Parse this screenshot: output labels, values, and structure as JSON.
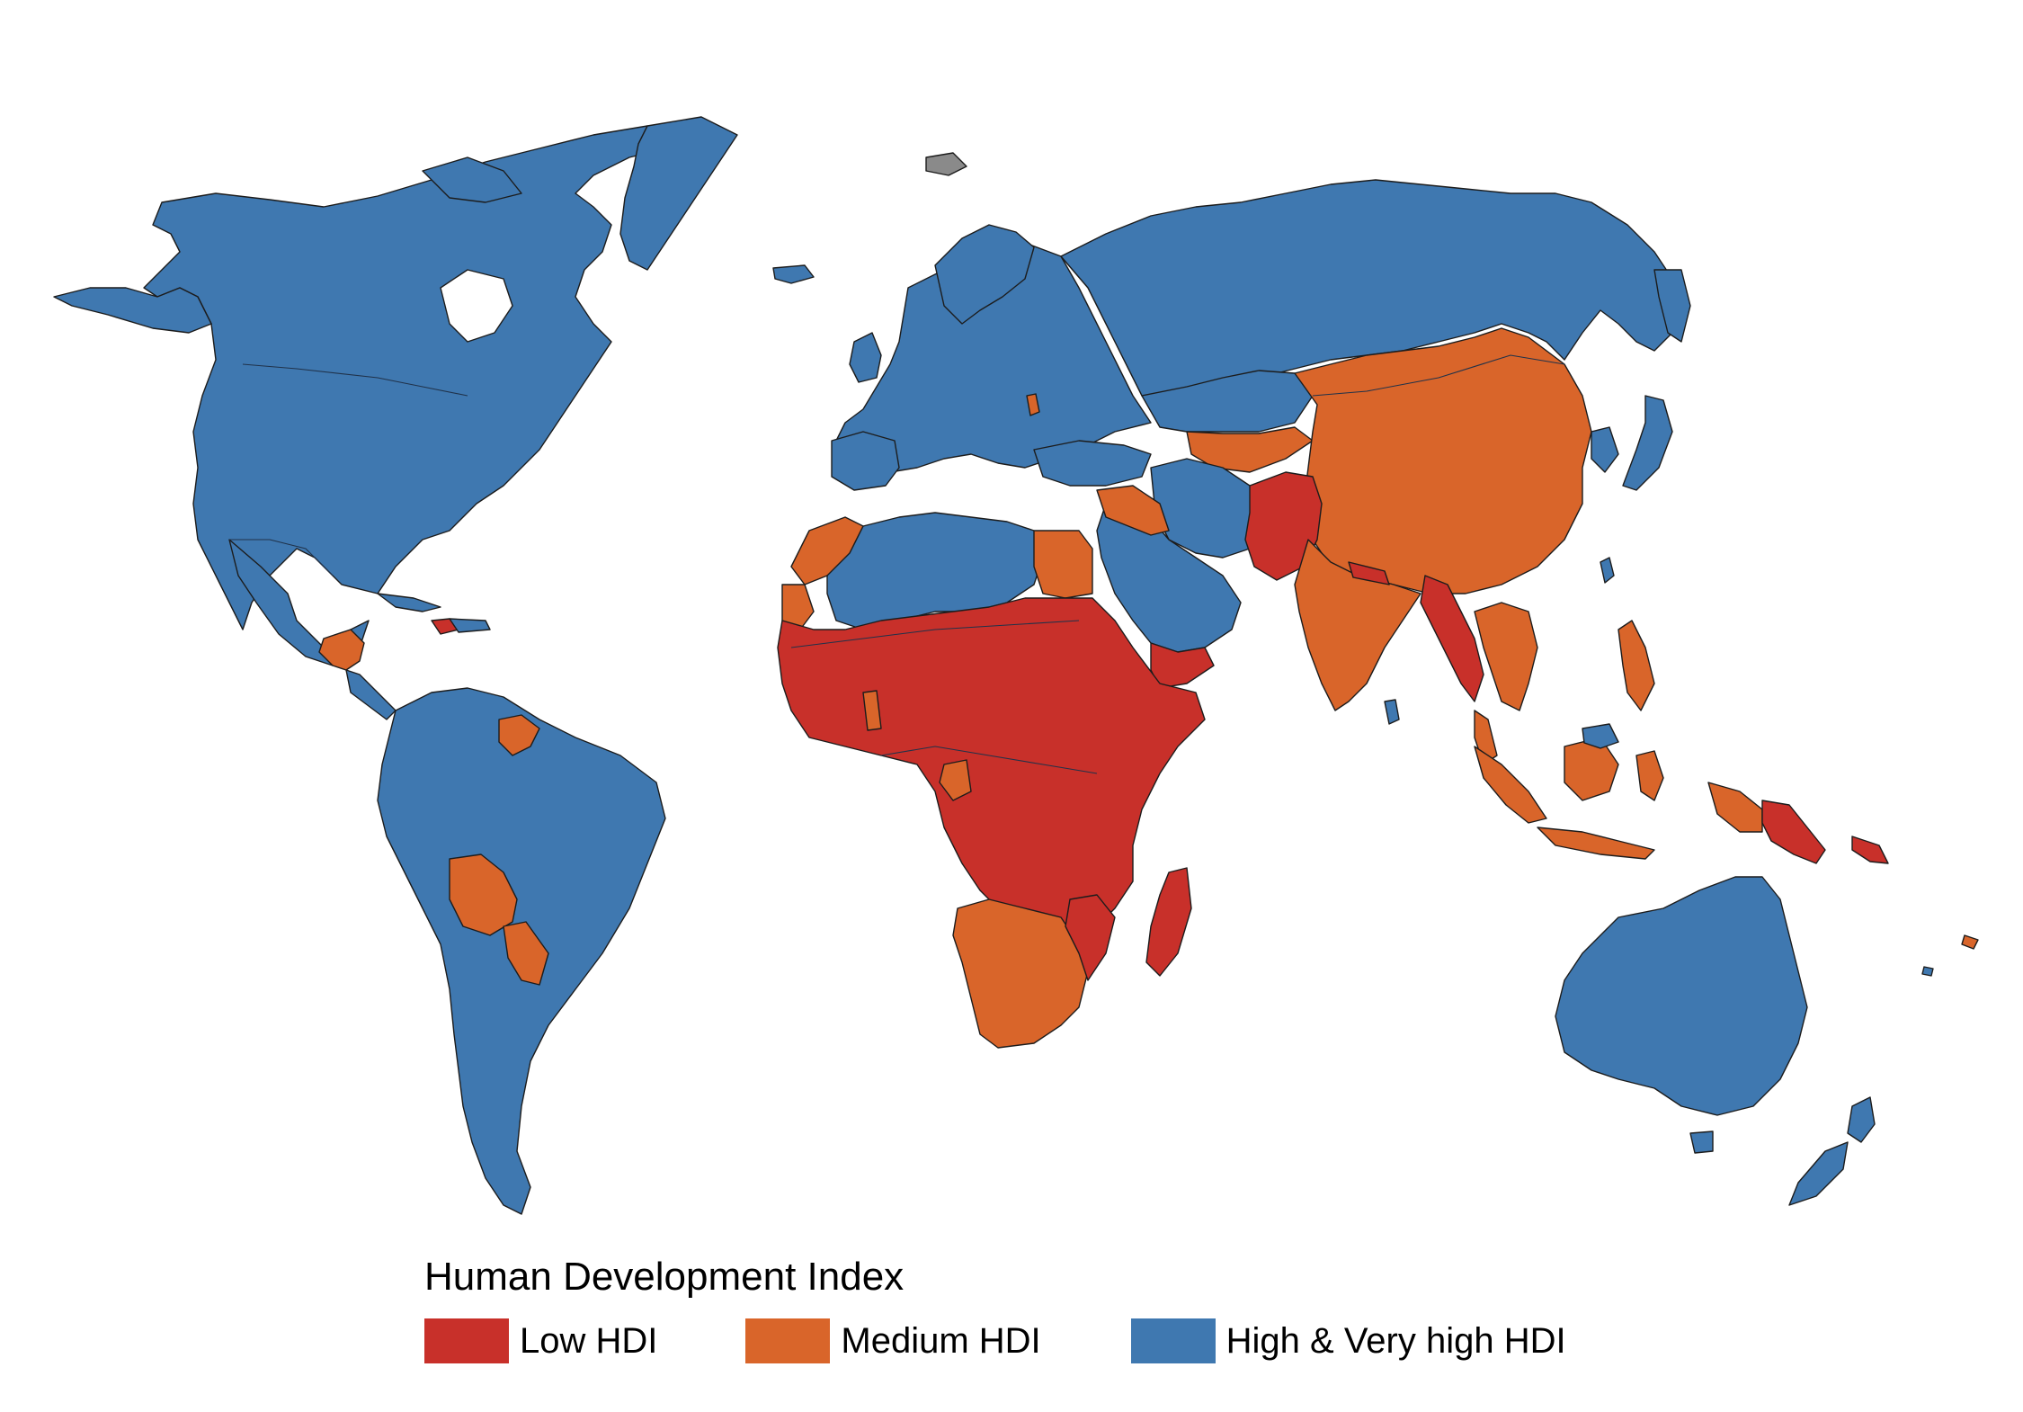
{
  "legend": {
    "title": "Human Development Index",
    "items": [
      {
        "label": "Low HDI",
        "color": "#c8302a",
        "category": "low"
      },
      {
        "label": "Medium HDI",
        "color": "#d9652a",
        "category": "medium"
      },
      {
        "label": "High & Very high HDI",
        "color": "#3f78b0",
        "category": "high"
      }
    ]
  },
  "map": {
    "projection": "world-robinson-style",
    "regions": [
      {
        "name": "North America",
        "hdi": "high"
      },
      {
        "name": "Greenland",
        "hdi": "high"
      },
      {
        "name": "Central America",
        "hdi": "medium"
      },
      {
        "name": "Caribbean",
        "hdi": "high"
      },
      {
        "name": "Haiti",
        "hdi": "low"
      },
      {
        "name": "South America",
        "hdi": "high"
      },
      {
        "name": "Bolivia and Paraguay",
        "hdi": "medium"
      },
      {
        "name": "Guyana",
        "hdi": "medium"
      },
      {
        "name": "Europe",
        "hdi": "high"
      },
      {
        "name": "Russia",
        "hdi": "high"
      },
      {
        "name": "North Africa",
        "hdi": "high"
      },
      {
        "name": "Morocco and Egypt",
        "hdi": "medium"
      },
      {
        "name": "Sub-Saharan Africa",
        "hdi": "low"
      },
      {
        "name": "Southern Africa",
        "hdi": "medium"
      },
      {
        "name": "Madagascar",
        "hdi": "low"
      },
      {
        "name": "Middle East",
        "hdi": "high"
      },
      {
        "name": "Yemen",
        "hdi": "low"
      },
      {
        "name": "Central Asia",
        "hdi": "medium"
      },
      {
        "name": "China",
        "hdi": "medium"
      },
      {
        "name": "India",
        "hdi": "medium"
      },
      {
        "name": "Pakistan and Afghanistan",
        "hdi": "low"
      },
      {
        "name": "Myanmar",
        "hdi": "low"
      },
      {
        "name": "Southeast Asia",
        "hdi": "medium"
      },
      {
        "name": "Indonesia",
        "hdi": "medium"
      },
      {
        "name": "Papua New Guinea",
        "hdi": "low"
      },
      {
        "name": "Japan and Korea",
        "hdi": "high"
      },
      {
        "name": "Australia",
        "hdi": "high"
      },
      {
        "name": "New Zealand",
        "hdi": "high"
      }
    ]
  }
}
